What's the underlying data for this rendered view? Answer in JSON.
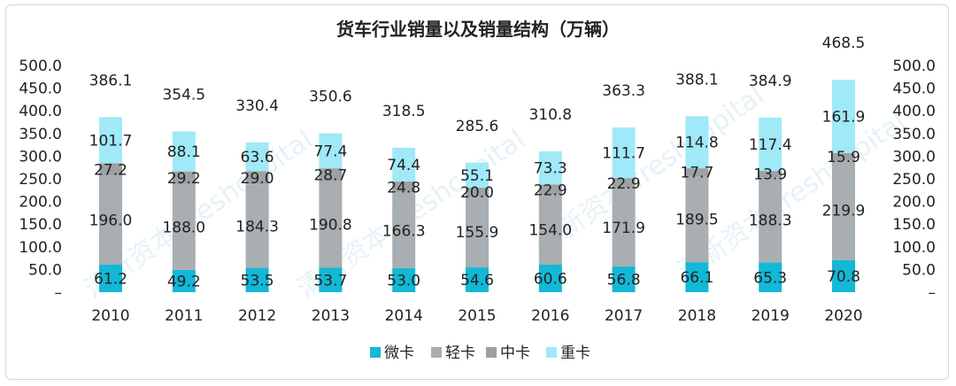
{
  "chart_data": {
    "type": "bar",
    "stacked": true,
    "title": "货车行业销量以及销量结构（万辆）",
    "categories": [
      "2010",
      "2011",
      "2012",
      "2013",
      "2014",
      "2015",
      "2016",
      "2017",
      "2018",
      "2019",
      "2020"
    ],
    "series": [
      {
        "name": "微卡",
        "color": "#12b8d6",
        "values": [
          61.2,
          49.2,
          53.5,
          53.7,
          53.0,
          54.6,
          60.6,
          56.8,
          66.1,
          65.3,
          70.8
        ]
      },
      {
        "name": "轻卡",
        "color": "#a8aeb1",
        "values": [
          196.0,
          188.0,
          184.3,
          190.8,
          166.3,
          155.9,
          154.0,
          171.9,
          189.5,
          188.3,
          219.9
        ]
      },
      {
        "name": "中卡",
        "color": "#9ea1a3",
        "values": [
          27.2,
          29.2,
          29.0,
          28.7,
          24.8,
          20.0,
          22.9,
          22.9,
          17.7,
          13.9,
          15.9
        ]
      },
      {
        "name": "重卡",
        "color": "#9fe9f8",
        "values": [
          101.7,
          88.1,
          63.6,
          77.4,
          74.4,
          55.1,
          73.3,
          111.7,
          114.8,
          117.4,
          161.9
        ]
      }
    ],
    "totals": [
      386.1,
      354.5,
      330.4,
      350.6,
      318.5,
      285.6,
      310.8,
      363.3,
      388.1,
      384.9,
      468.5
    ],
    "ylim": [
      0,
      500
    ],
    "yticks": [
      "–",
      "50.0",
      "100.0",
      "150.0",
      "200.0",
      "250.0",
      "300.0",
      "350.0",
      "400.0",
      "450.0",
      "500.0"
    ],
    "legend_position": "bottom",
    "watermark": "清新资本 freshcapital"
  }
}
